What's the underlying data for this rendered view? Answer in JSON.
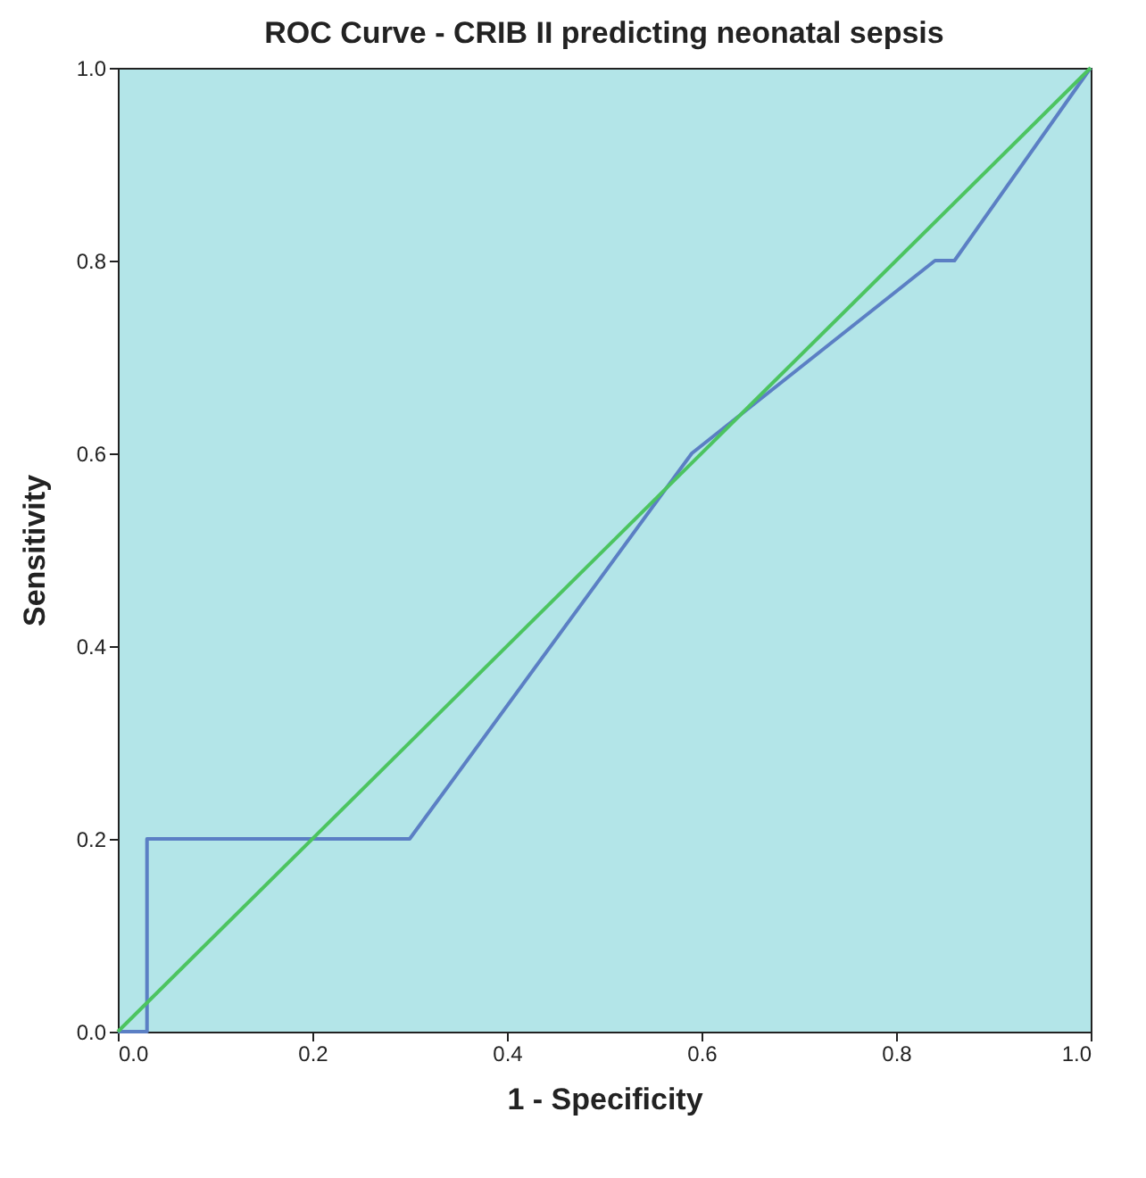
{
  "chart_data": {
    "type": "line",
    "title": "ROC Curve - CRIB II predicting neonatal sepsis",
    "xlabel": "1 - Specificity",
    "ylabel": "Sensitivity",
    "series": [
      {
        "color": "#5b7fc4",
        "x": [
          0,
          0.03,
          0.03,
          0.3,
          0.59,
          0.84,
          0.86,
          1
        ],
        "values": [
          0,
          0,
          0.2,
          0.2,
          0.6,
          0.8,
          0.8,
          1
        ]
      },
      {
        "color": "#4cc460",
        "x": [
          0,
          1
        ],
        "values": [
          0,
          1
        ]
      }
    ],
    "xlim": [
      0,
      1
    ],
    "ylim": [
      0,
      1
    ],
    "xticks": [
      {
        "value": 0,
        "label": "0.0"
      },
      {
        "value": 0.2,
        "label": "0.2"
      },
      {
        "value": 0.4,
        "label": "0.4"
      },
      {
        "value": 0.6,
        "label": "0.6"
      },
      {
        "value": 0.8,
        "label": "0.8"
      },
      {
        "value": 1,
        "label": "1.0"
      }
    ],
    "yticks": [
      {
        "value": 0,
        "label": "0.0"
      },
      {
        "value": 0.2,
        "label": "0.2"
      },
      {
        "value": 0.4,
        "label": "0.4"
      },
      {
        "value": 0.6,
        "label": "0.6"
      },
      {
        "value": 0.8,
        "label": "0.8"
      },
      {
        "value": 1,
        "label": "1.0"
      }
    ],
    "grid": false,
    "marker": "none",
    "line_style": "solid"
  }
}
